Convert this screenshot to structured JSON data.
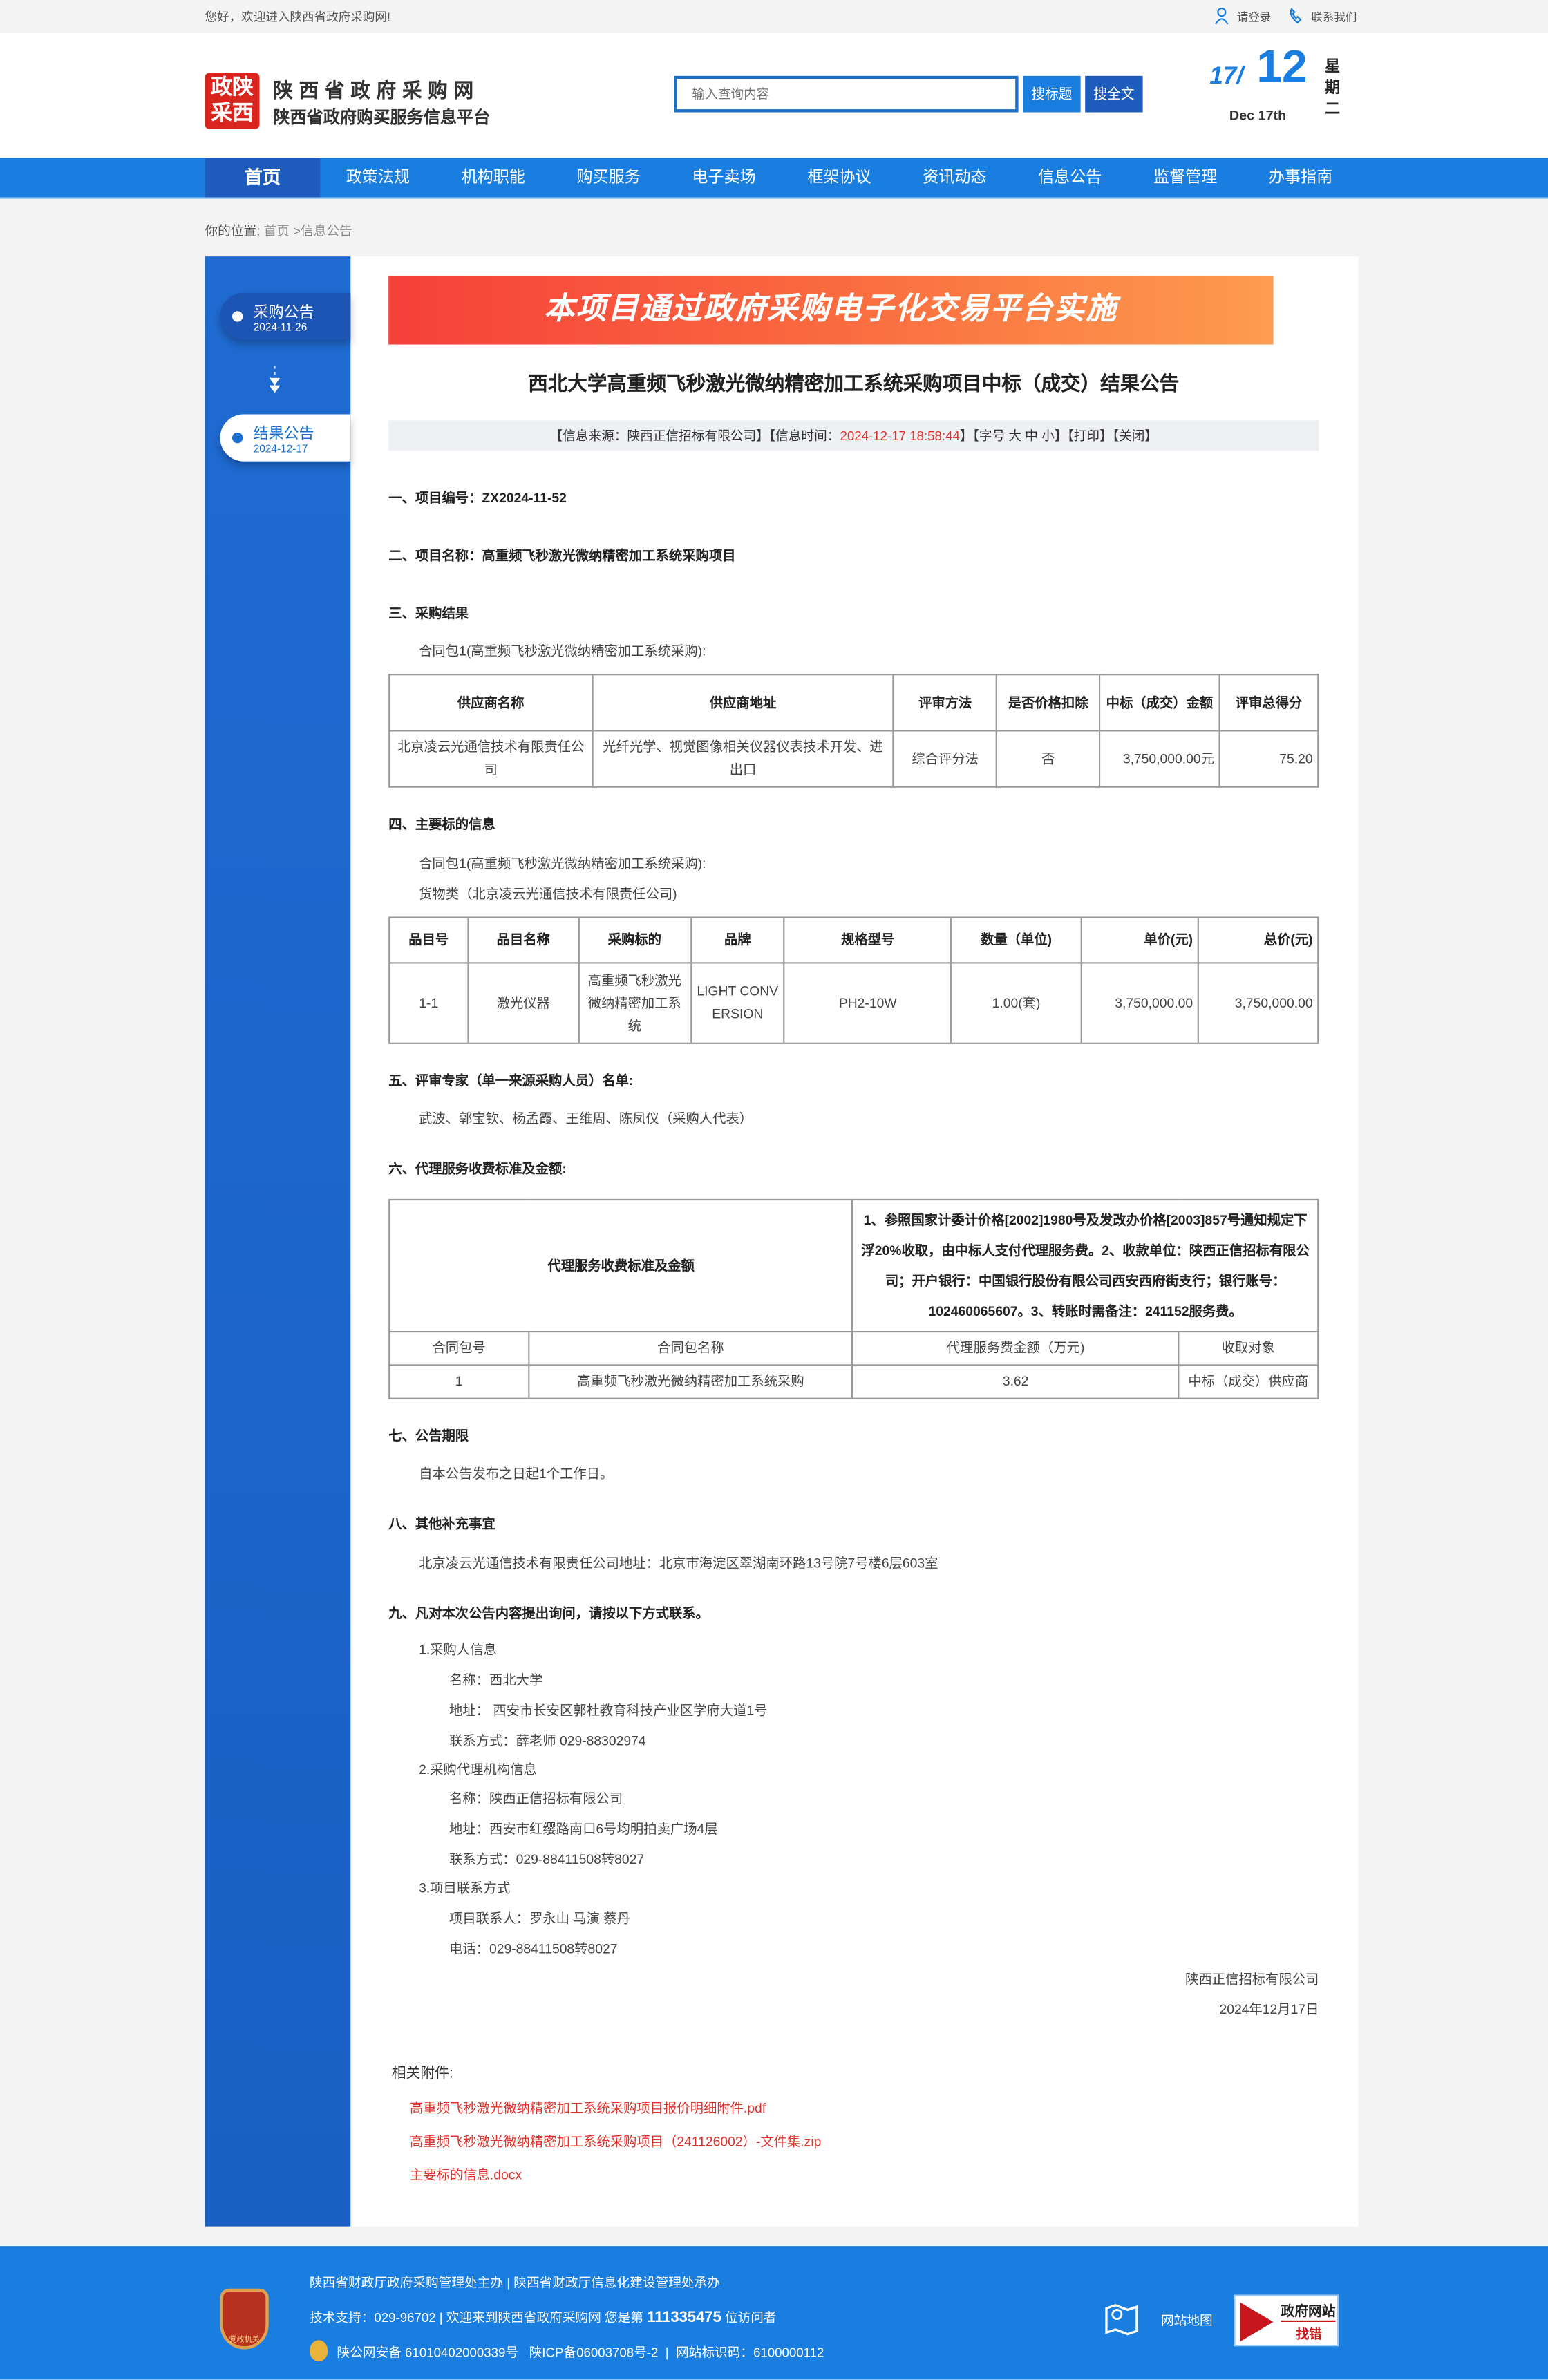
{
  "topbar": {
    "welcome": "您好，欢迎进入陕西省政府采购网!",
    "login": "请登录",
    "contact": "联系我们"
  },
  "header": {
    "logo_mark": "政陕采西",
    "site_name": "陕西省政府采购网",
    "site_subtitle": "陕西省政府购买服务信息平台",
    "search_placeholder": "输入查询内容",
    "search_title_btn": "搜标题",
    "search_full_btn": "搜全文",
    "date_day": "17/",
    "date_month": "12",
    "date_en": "Dec 17th",
    "weekday": "星期二"
  },
  "nav": [
    "首页",
    "政策法规",
    "机构职能",
    "购买服务",
    "电子卖场",
    "框架协议",
    "资讯动态",
    "信息公告",
    "监督管理",
    "办事指南"
  ],
  "breadcrumb": {
    "label": "你的位置:",
    "home": "首页",
    "sep": " >",
    "current": "信息公告"
  },
  "sidebar": [
    {
      "label": "采购公告",
      "date": "2024-11-26"
    },
    {
      "label": "结果公告",
      "date": "2024-12-17",
      "active": true
    }
  ],
  "banner": "本项目通过政府采购电子化交易平台实施",
  "title": "西北大学高重频飞秒激光微纳精密加工系统采购项目中标（成交）结果公告",
  "meta": {
    "source": "【信息来源：陕西正信招标有限公司】【信息时间：",
    "time": "2024-12-17 18:58:44",
    "tail": "】【字号 大 中 小】【打印】【关闭】",
    "time_color": "#e0302a"
  },
  "sections": {
    "s1": "一、项目编号：ZX2024-11-52",
    "s2": "二、项目名称：高重频飞秒激光微纳精密加工系统采购项目",
    "s3": "三、采购结果",
    "s3_pkg": "合同包1(高重频飞秒激光微纳精密加工系统采购):",
    "s4": "四、主要标的信息",
    "s4_pkg": "合同包1(高重频飞秒激光微纳精密加工系统采购):",
    "s4_type": "货物类（北京凌云光通信技术有限责任公司)",
    "s5": "五、评审专家（单一来源采购人员）名单:",
    "s5_text": "武波、郭宝钦、杨孟霞、王维周、陈凤仪（采购人代表）",
    "s6": "六、代理服务收费标准及金额:",
    "s7": "七、公告期限",
    "s7_text": "自本公告发布之日起1个工作日。",
    "s8": "八、其他补充事宜",
    "s8_text": "北京凌云光通信技术有限责任公司地址：北京市海淀区翠湖南环路13号院7号楼6层603室",
    "s9": "九、凡对本次公告内容提出询问，请按以下方式联系。",
    "c1": "1.采购人信息",
    "c1_name": "名称：西北大学",
    "c1_addr": "地址： 西安市长安区郭杜教育科技产业区学府大道1号",
    "c1_tel": "联系方式：薛老师 029-88302974",
    "c2": "2.采购代理机构信息",
    "c2_name": "名称：陕西正信招标有限公司",
    "c2_addr": "地址：西安市红缨路南口6号均明拍卖广场4层",
    "c2_tel": "联系方式：029-88411508转8027",
    "c3": "3.项目联系方式",
    "c3_person": "项目联系人：罗永山 马演 蔡丹",
    "c3_tel": "电话：029-88411508转8027",
    "sign_org": "陕西正信招标有限公司",
    "sign_date": "2024年12月17日"
  },
  "result_table": {
    "headers": [
      "供应商名称",
      "供应商地址",
      "评审方法",
      "是否价格扣除",
      "中标（成交）金额",
      "评审总得分"
    ],
    "row": [
      "北京凌云光通信技术有限责任公司",
      "光纤光学、视觉图像相关仪器仪表技术开发、进出口",
      "综合评分法",
      "否",
      "3,750,000.00元",
      "75.20"
    ]
  },
  "item_table": {
    "headers": [
      "品目号",
      "品目名称",
      "采购标的",
      "品牌",
      "规格型号",
      "数量（单位)",
      "单价(元)",
      "总价(元)"
    ],
    "row": [
      "1-1",
      "激光仪器",
      "高重频飞秒激光微纳精密加工系统",
      "LIGHT CONVERSION",
      "PH2-10W",
      "1.00(套)",
      "3,750,000.00",
      "3,750,000.00"
    ]
  },
  "fee_table": {
    "label": "代理服务收费标准及金额",
    "description": "1、参照国家计委计价格[2002]1980号及发改办价格[2003]857号通知规定下浮20%收取，由中标人支付代理服务费。2、收款单位：陕西正信招标有限公司；开户银行：中国银行股份有限公司西安西府街支行；银行账号：102460065607。3、转账时需备注：241152服务费。",
    "headers": [
      "合同包号",
      "合同包名称",
      "代理服务费金额（万元)",
      "收取对象"
    ],
    "row": [
      "1",
      "高重频飞秒激光微纳精密加工系统采购",
      "3.62",
      "中标（成交）供应商"
    ]
  },
  "attachments": {
    "label": "相关附件:",
    "files": [
      "高重频飞秒激光微纳精密加工系统采购项目报价明细附件.pdf",
      "高重频飞秒激光微纳精密加工系统采购项目（241126002）-文件集.zip",
      "主要标的信息.docx"
    ]
  },
  "footer": {
    "line1": "陕西省财政厅政府采购管理处主办 | 陕西省财政厅信息化建设管理处承办",
    "line2_pre": "技术支持：029-96702 | 欢迎来到陕西省政府采购网 您是第 ",
    "visitors": "111335475",
    "line2_post": " 位访问者",
    "line3": "陕公网安备 61010402000339号   陕ICP备06003708号-2  |  网站标识码：6100000112",
    "emblem_text": "党政机关",
    "sitemap": "网站地图",
    "error_top": "政府网站",
    "error_bottom": "找错"
  },
  "colors": {
    "brand_blue": "#1a7ee0",
    "nav_active": "#1d5cbd",
    "link_red": "#e0302a"
  }
}
